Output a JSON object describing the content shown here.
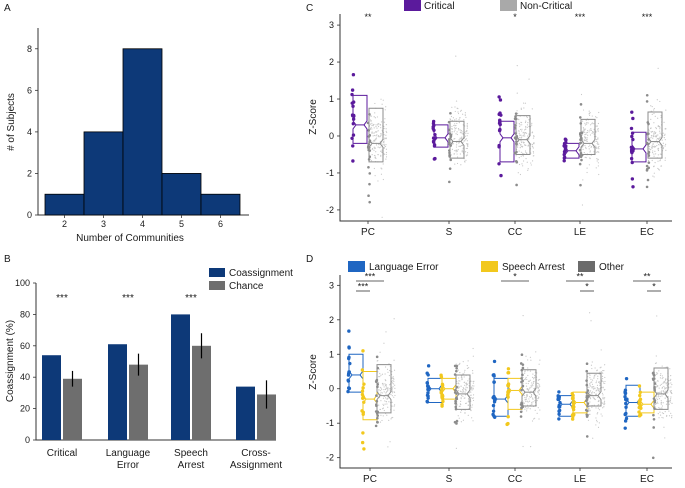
{
  "colors": {
    "navy": "#0d3978",
    "gray_bar": "#6e6e6e",
    "purple": "#5b1a9c",
    "light_gray": "#a9a9a9",
    "blue": "#1f66c2",
    "yellow": "#f2c81d",
    "dark_gray": "#6b6b6b"
  },
  "chart_data": [
    {
      "panel": "A",
      "type": "bar",
      "title": "",
      "xlabel": "Number of Communities",
      "ylabel": "# of Subjects",
      "categories": [
        "2",
        "3",
        "4",
        "5",
        "6"
      ],
      "values": [
        1,
        4,
        8,
        2,
        1
      ],
      "ylim": [
        0,
        9
      ],
      "yticks": [
        "0",
        "2",
        "4",
        "6",
        "8"
      ],
      "grid": false
    },
    {
      "panel": "B",
      "type": "bar",
      "xlabel": "",
      "ylabel": "Coassignment (%)",
      "ylim": [
        0,
        100
      ],
      "yticks": [
        "0",
        "20",
        "40",
        "60",
        "80",
        "100"
      ],
      "categories": [
        [
          "Critical"
        ],
        [
          "Language",
          "Error"
        ],
        [
          "Speech",
          "Arrest"
        ],
        [
          "Cross-",
          "Assignment"
        ]
      ],
      "series": [
        {
          "name": "Coassignment",
          "values": [
            54,
            61,
            80,
            34
          ]
        },
        {
          "name": "Chance",
          "values": [
            39,
            48,
            60,
            29
          ],
          "errors": [
            5,
            7,
            8,
            9
          ]
        }
      ],
      "significance": [
        "***",
        "***",
        "***",
        ""
      ],
      "legend": [
        "Coassignment",
        "Chance"
      ],
      "grid": false
    },
    {
      "panel": "C",
      "type": "box",
      "ylabel": "Z-Score",
      "ylim": [
        -2.3,
        3.3
      ],
      "yticks": [
        "-2",
        "-1",
        "0",
        "1",
        "2",
        "3"
      ],
      "categories": [
        "PC",
        "S",
        "CC",
        "LE",
        "EC"
      ],
      "legend": [
        "Critical",
        "Non-Critical"
      ],
      "significance": [
        "**",
        "",
        "*",
        "***",
        "***"
      ],
      "series": [
        {
          "name": "Critical",
          "boxes": [
            {
              "q1": -0.2,
              "median": 0.3,
              "q3": 1.1
            },
            {
              "q1": -0.3,
              "median": -0.05,
              "q3": 0.3
            },
            {
              "q1": -0.7,
              "median": -0.05,
              "q3": 0.4
            },
            {
              "q1": -0.6,
              "median": -0.4,
              "q3": -0.2
            },
            {
              "q1": -0.7,
              "median": -0.35,
              "q3": 0.1
            }
          ]
        },
        {
          "name": "Non-Critical",
          "boxes": [
            {
              "q1": -0.7,
              "median": -0.2,
              "q3": 0.75
            },
            {
              "q1": -0.6,
              "median": -0.15,
              "q3": 0.4
            },
            {
              "q1": -0.5,
              "median": -0.1,
              "q3": 0.55
            },
            {
              "q1": -0.5,
              "median": -0.2,
              "q3": 0.45
            },
            {
              "q1": -0.6,
              "median": -0.15,
              "q3": 0.65
            }
          ]
        }
      ]
    },
    {
      "panel": "D",
      "type": "box",
      "ylabel": "Z-Score",
      "ylim": [
        -2.3,
        3.3
      ],
      "yticks": [
        "-2",
        "-1",
        "0",
        "1",
        "2",
        "3"
      ],
      "categories": [
        "PC",
        "S",
        "CC",
        "LE",
        "EC"
      ],
      "legend": [
        "Language Error",
        "Speech Arrest",
        "Other"
      ],
      "significance_brackets": [
        {
          "group": 0,
          "from": 0,
          "to": 2,
          "label": "***",
          "level": 1
        },
        {
          "group": 0,
          "from": 0,
          "to": 1,
          "label": "***",
          "level": 0
        },
        {
          "group": 2,
          "from": 0,
          "to": 2,
          "label": "*",
          "level": 1
        },
        {
          "group": 3,
          "from": 0,
          "to": 2,
          "label": "**",
          "level": 1
        },
        {
          "group": 3,
          "from": 1,
          "to": 2,
          "label": "*",
          "level": 0
        },
        {
          "group": 4,
          "from": 0,
          "to": 2,
          "label": "**",
          "level": 1
        },
        {
          "group": 4,
          "from": 1,
          "to": 2,
          "label": "*",
          "level": 0
        }
      ],
      "series": [
        {
          "name": "Language Error",
          "boxes": [
            {
              "q1": -0.1,
              "median": 0.4,
              "q3": 1.0
            },
            {
              "q1": -0.4,
              "median": 0.0,
              "q3": 0.3
            },
            {
              "q1": -0.8,
              "median": -0.3,
              "q3": 0.3
            },
            {
              "q1": -0.8,
              "median": -0.45,
              "q3": -0.2
            },
            {
              "q1": -0.8,
              "median": -0.4,
              "q3": 0.1
            }
          ]
        },
        {
          "name": "Speech Arrest",
          "boxes": [
            {
              "q1": -0.9,
              "median": -0.3,
              "q3": 0.5
            },
            {
              "q1": -0.3,
              "median": 0.0,
              "q3": 0.3
            },
            {
              "q1": -0.6,
              "median": -0.05,
              "q3": 0.3
            },
            {
              "q1": -0.7,
              "median": -0.4,
              "q3": -0.1
            },
            {
              "q1": -0.7,
              "median": -0.45,
              "q3": -0.1
            }
          ]
        },
        {
          "name": "Other",
          "boxes": [
            {
              "q1": -0.7,
              "median": -0.2,
              "q3": 0.7
            },
            {
              "q1": -0.6,
              "median": -0.15,
              "q3": 0.4
            },
            {
              "q1": -0.5,
              "median": -0.1,
              "q3": 0.55
            },
            {
              "q1": -0.5,
              "median": -0.2,
              "q3": 0.45
            },
            {
              "q1": -0.6,
              "median": -0.15,
              "q3": 0.6
            }
          ]
        }
      ]
    }
  ],
  "panel_labels": {
    "a": "A",
    "b": "B",
    "c": "C",
    "d": "D"
  }
}
